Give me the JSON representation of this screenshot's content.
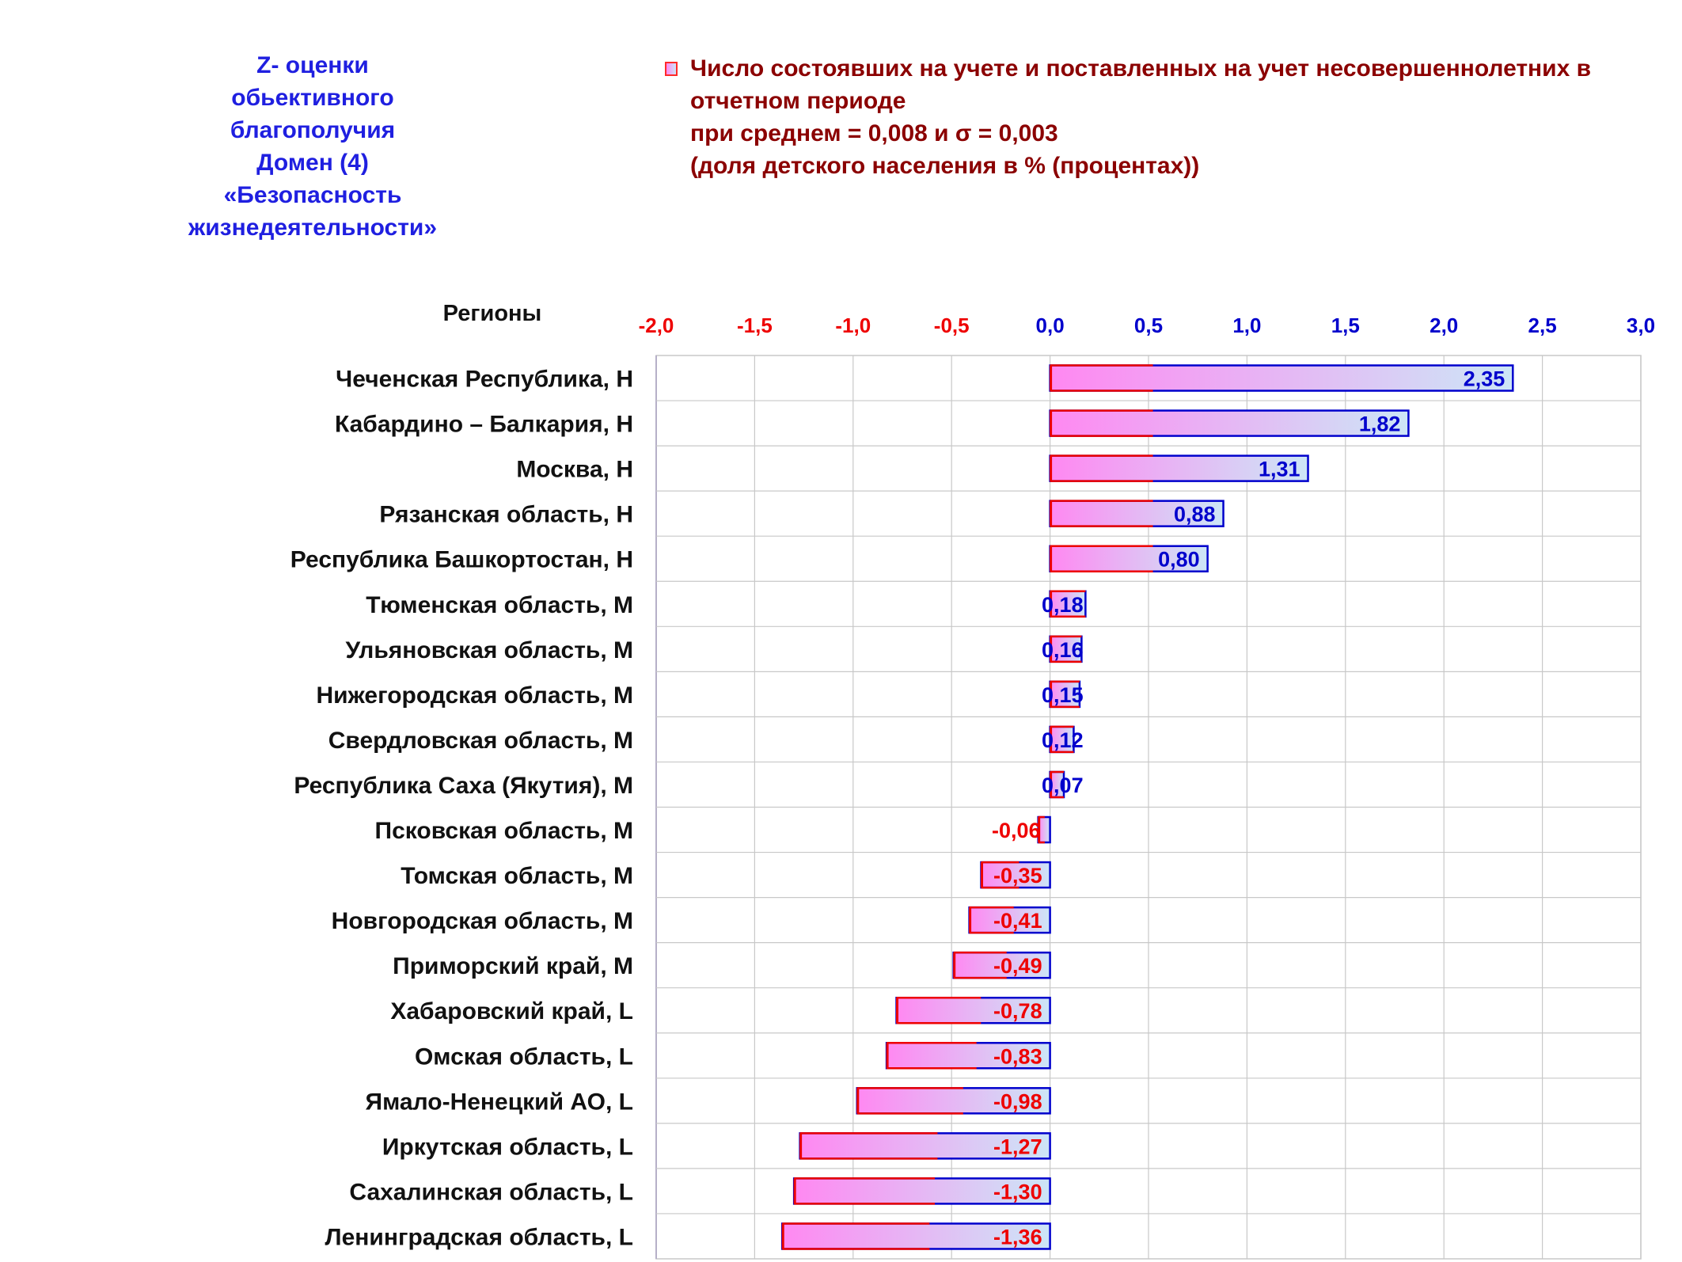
{
  "side_title": [
    "Z- оценки",
    "обьективного",
    "благополучия",
    "Домен (4)",
    "«Безопасность",
    "жизнедеятельности»"
  ],
  "legend": {
    "lines": [
      "Число состоявших на учете и поставленных на учет несовершеннолетних в",
      "отчетном периоде",
      "при среднем = 0,008  и σ = 0,003",
      "(доля детского населения в % (процентах))"
    ]
  },
  "colors": {
    "title_blue": "#1f1fe0",
    "legend_darkred": "#8b0000",
    "positive": "#0000cc",
    "negative": "#ee0000",
    "bar_left": "#ff88f2",
    "bar_right": "#cce6f6",
    "grid": "#c8c8c8"
  },
  "chart_data": {
    "type": "bar",
    "orientation": "horizontal",
    "xlim": [
      -2.0,
      3.0
    ],
    "ticks": [
      "-2,0",
      "-1,5",
      "-1,0",
      "-0,5",
      "0,0",
      "0,5",
      "1,0",
      "1,5",
      "2,0",
      "2,5",
      "3,0"
    ],
    "tick_values": [
      -2.0,
      -1.5,
      -1.0,
      -0.5,
      0.0,
      0.5,
      1.0,
      1.5,
      2.0,
      2.5,
      3.0
    ],
    "category_header": "Регионы",
    "grid": true,
    "categories": [
      "Чеченская Республика,  H",
      "Кабардино – Балкария,  H",
      "Москва,  H",
      "Рязанская область,  H",
      "Республика Башкортостан,  H",
      "Тюменская область,  M",
      "Ульяновская область,  M",
      "Нижегородская область,  M",
      "Свердловская область,  M",
      "Республика Саха (Якутия),  M",
      "Псковская область,  M",
      "Томская область,  M",
      "Новгородская область,  M",
      "Приморский край,  M",
      "Хабаровский край,  L",
      "Омская область,  L",
      "Ямало-Ненецкий АО,  L",
      "Иркутская область,  L",
      "Сахалинская область,  L",
      "Ленинградская область,  L"
    ],
    "values": [
      2.35,
      1.82,
      1.31,
      0.88,
      0.8,
      0.18,
      0.16,
      0.15,
      0.12,
      0.07,
      -0.06,
      -0.35,
      -0.41,
      -0.49,
      -0.78,
      -0.83,
      -0.98,
      -1.27,
      -1.3,
      -1.36
    ],
    "labels": [
      "2,35",
      "1,82",
      "1,31",
      "0,88",
      "0,80",
      "0,18",
      "0,16",
      "0,15",
      "0,12",
      "0,07",
      "-0,06",
      "-0,35",
      "-0,41",
      "-0,49",
      "-0,78",
      "-0,83",
      "-0,98",
      "-1,27",
      "-1,30",
      "-1,36"
    ]
  }
}
